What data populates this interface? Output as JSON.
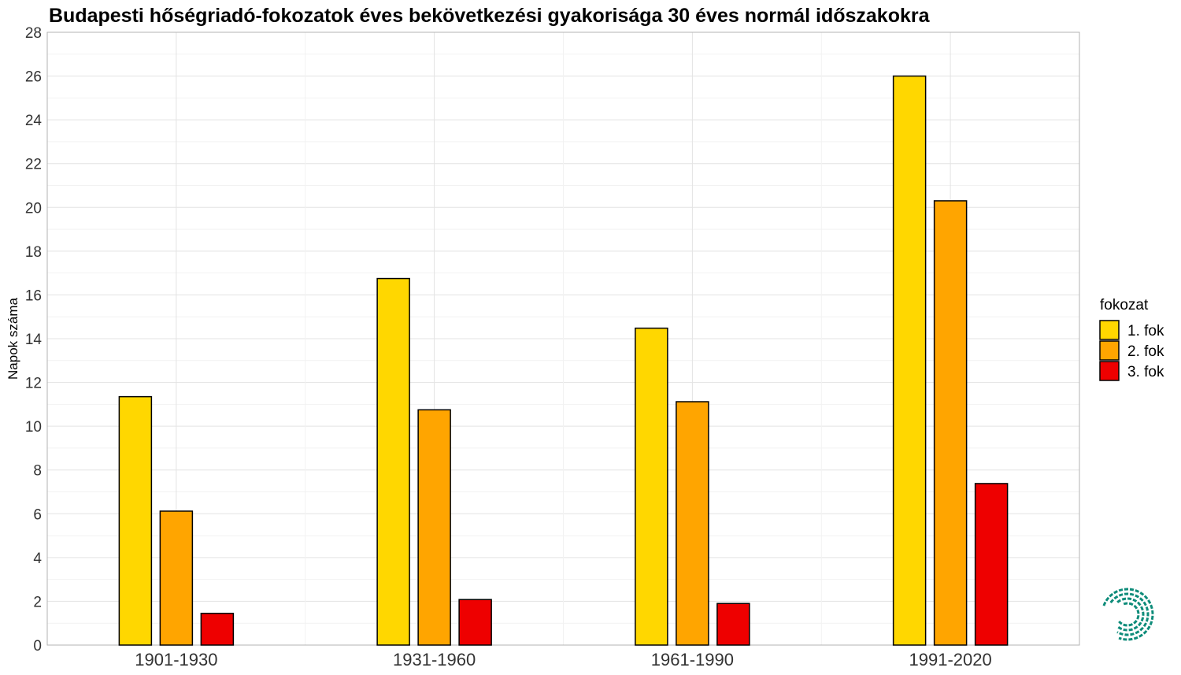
{
  "chart_data": {
    "type": "bar",
    "title": "Budapesti hőségriadó-fokozatok éves bekövetkezési gyakorisága 30 éves normál időszakokra",
    "xlabel": "",
    "ylabel": "Napok száma",
    "ylim": [
      0,
      28
    ],
    "yticks": [
      0,
      2,
      4,
      6,
      8,
      10,
      12,
      14,
      16,
      18,
      20,
      22,
      24,
      26,
      28
    ],
    "grid": true,
    "legend": {
      "title": "fokozat",
      "position": "right"
    },
    "categories": [
      "1901-1930",
      "1931-1960",
      "1961-1990",
      "1991-2020"
    ],
    "series": [
      {
        "name": "1. fok",
        "color": "#FFD700",
        "values": [
          11.35,
          16.75,
          14.48,
          26.0
        ]
      },
      {
        "name": "2. fok",
        "color": "#FFA500",
        "values": [
          6.12,
          10.75,
          11.12,
          20.3
        ]
      },
      {
        "name": "3. fok",
        "color": "#EE0000",
        "values": [
          1.45,
          2.08,
          1.9,
          7.38
        ]
      }
    ]
  },
  "logo": {
    "icon": "swirl-logo-icon",
    "color": "#0E8C7A"
  }
}
